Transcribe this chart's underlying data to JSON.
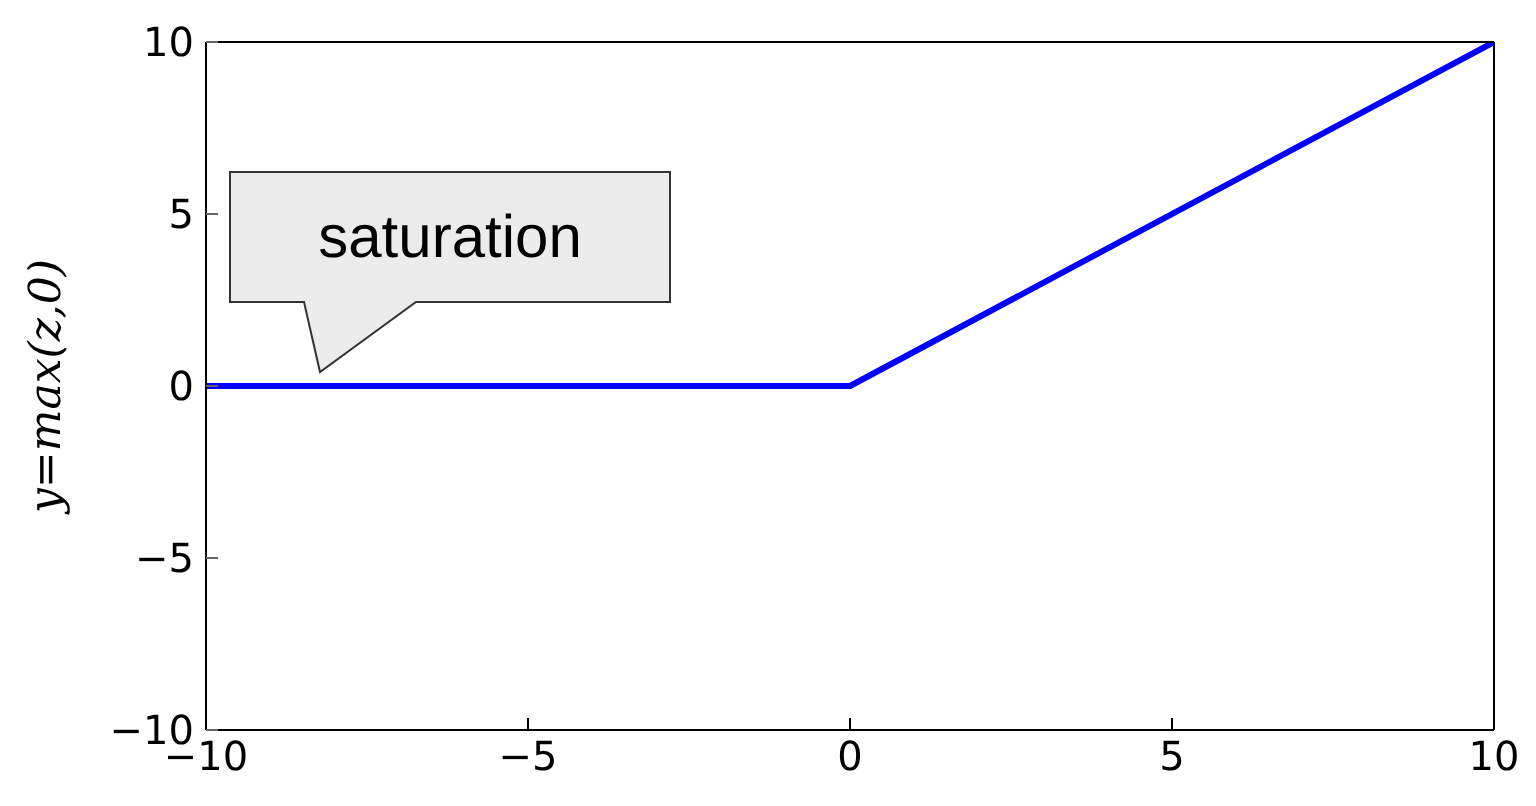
{
  "chart_data": {
    "type": "line",
    "ylabel": "y=max(z,0)",
    "x": [
      -10,
      0,
      10
    ],
    "series": [
      {
        "color": "#0000ff",
        "values": [
          0,
          0,
          10
        ]
      }
    ],
    "xlim": [
      -10,
      10
    ],
    "xticks": [
      -10,
      -5,
      0,
      5,
      10
    ],
    "ylim": [
      -10,
      10
    ],
    "yticks": [
      -10,
      -5,
      0,
      5,
      10
    ],
    "marker": "none",
    "line_style": "solid",
    "annotations": [
      "saturation"
    ]
  }
}
